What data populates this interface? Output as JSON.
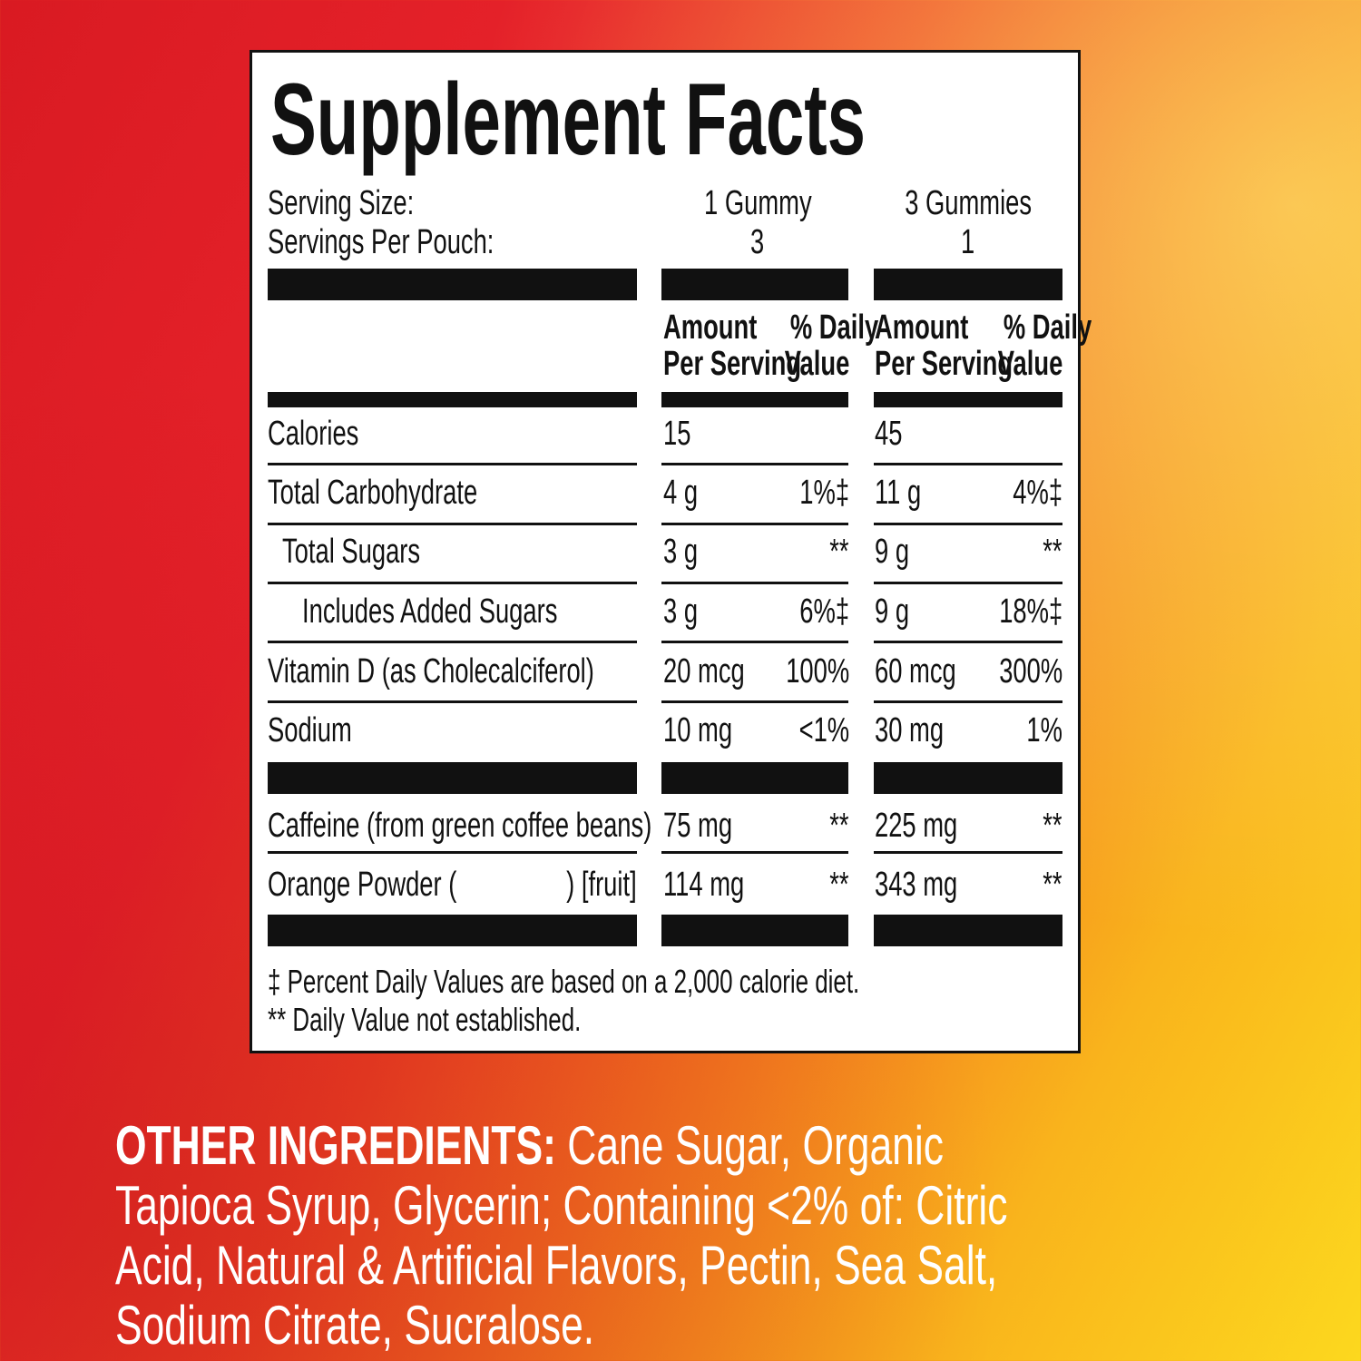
{
  "title": "Supplement Facts",
  "serving": {
    "size_label": "Serving Size:",
    "per_label": "Servings Per Pouch:",
    "col1_size": "1 Gummy",
    "col1_per": "3",
    "col2_size": "3 Gummies",
    "col2_per": "1"
  },
  "headers": {
    "amount1": "Amount",
    "amount2": "Per Serving",
    "dv1": "% Daily",
    "dv2": "Value"
  },
  "rows": [
    {
      "label": "Calories",
      "a1": "15",
      "d1": "",
      "a2": "45",
      "d2": ""
    },
    {
      "label": "Total Carbohydrate",
      "a1": "4 g",
      "d1": "1%‡",
      "a2": "11 g",
      "d2": "4%‡"
    },
    {
      "label": "Total Sugars",
      "a1": "3 g",
      "d1": "**",
      "a2": "9 g",
      "d2": "**"
    },
    {
      "label": "Includes Added Sugars",
      "a1": "3 g",
      "d1": "6%‡",
      "a2": "9 g",
      "d2": "18%‡"
    },
    {
      "label": "Vitamin D (as Cholecalciferol)",
      "a1": "20 mcg",
      "d1": "100%",
      "a2": "60 mcg",
      "d2": "300%"
    },
    {
      "label": "Sodium",
      "a1": "10 mg",
      "d1": "<1%",
      "a2": "30 mg",
      "d2": "1%"
    },
    {
      "label": "Caffeine (from green coffee beans)",
      "a1": "75 mg",
      "d1": "**",
      "a2": "225 mg",
      "d2": "**"
    },
    {
      "label": "Orange Powder (",
      "label_end": ") [fruit]",
      "a1": "114 mg",
      "d1": "**",
      "a2": "343 mg",
      "d2": "**"
    }
  ],
  "footnotes": [
    "‡ Percent Daily Values are based on a 2,000 calorie diet.",
    "** Daily Value not established."
  ],
  "ingredients": {
    "label": "OTHER INGREDIENTS:",
    "text": " Cane Sugar, Organic Tapioca Syrup, Glycerin; Containing <2% of: Citric Acid, Natural & Artificial Flavors, Pectin, Sea Salt, Sodium Citrate, Sucralose."
  },
  "colors": {
    "background_left": "#e31b23",
    "background_right": "#fcd81e",
    "text": "#111111",
    "ingredients_text": "#ffffff"
  }
}
